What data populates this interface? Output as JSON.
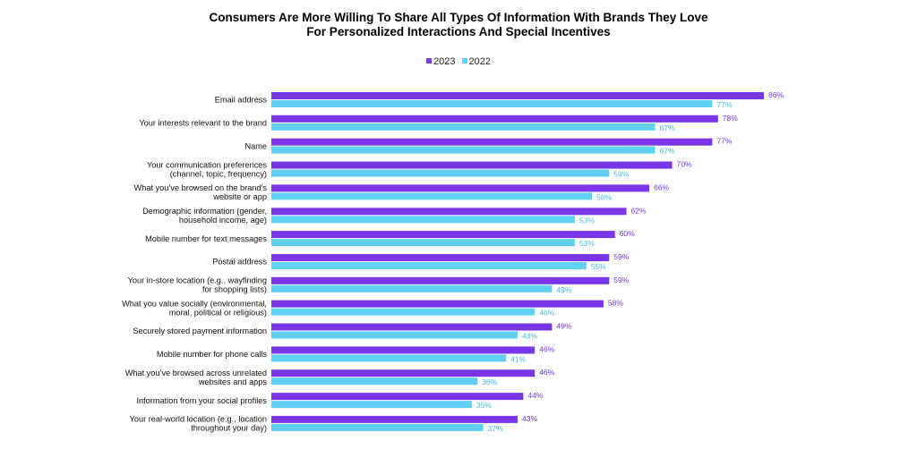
{
  "chart_data": {
    "type": "bar",
    "orientation": "horizontal",
    "title_lines": [
      "Consumers Are More Willing To Share All Types Of Information With Brands They Love",
      "For Personalized Interactions And Special Incentives"
    ],
    "legend_position": "top-center",
    "xlim": [
      0,
      100
    ],
    "grid": false,
    "categories": [
      [
        "Email address"
      ],
      [
        "Your interests relevant to the brand"
      ],
      [
        "Name"
      ],
      [
        "Your communication preferences",
        "(channel, topic, frequency)"
      ],
      [
        "What you’ve browsed on the brand’s",
        "website or app"
      ],
      [
        "Demographic information (gender,",
        "household income, age)"
      ],
      [
        "Mobile number for text messages"
      ],
      [
        "Postal address"
      ],
      [
        "Your in-store location (e.g.. wayfinding",
        "for shopping lists)"
      ],
      [
        "What you value socially (environmental,",
        "moral, political or religious)"
      ],
      [
        "Securely stored payment information"
      ],
      [
        "Mobile number for phone calls"
      ],
      [
        "What you’ve browsed across unrelated",
        "websites and apps"
      ],
      [
        "Information from your social profiles"
      ],
      [
        "Your real-world location (e.g., location",
        "throughout your day)"
      ]
    ],
    "series": [
      {
        "name": "2023",
        "color": "#7a35e6",
        "label_color": "#7a35e6",
        "values": [
          86,
          78,
          77,
          70,
          66,
          62,
          60,
          59,
          59,
          58,
          49,
          46,
          46,
          44,
          43
        ]
      },
      {
        "name": "2022",
        "color": "#5fd0f1",
        "label_color": "#43bde6",
        "values": [
          77,
          67,
          67,
          59,
          56,
          53,
          53,
          55,
          49,
          46,
          43,
          41,
          36,
          35,
          37
        ]
      }
    ],
    "value_suffix": "%"
  }
}
